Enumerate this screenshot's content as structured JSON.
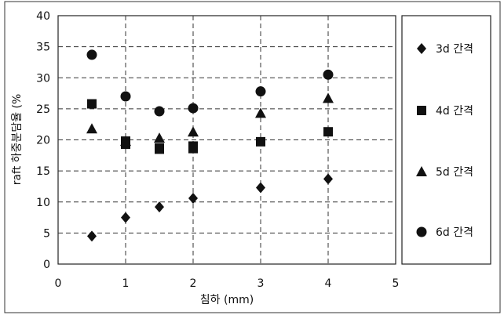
{
  "chart_data": {
    "type": "scatter",
    "xlabel": "침하 (mm)",
    "ylabel": "raft 하중분담율 (%",
    "xlim": [
      0,
      5
    ],
    "ylim": [
      0,
      40
    ],
    "xticks": [
      0,
      1,
      2,
      3,
      4,
      5
    ],
    "yticks": [
      0,
      5,
      10,
      15,
      20,
      25,
      30,
      35,
      40
    ],
    "grid": true,
    "legend_position": "right",
    "series": [
      {
        "name": "3d 간격",
        "marker": "diamond",
        "x": [
          0.5,
          1.0,
          1.5,
          2.0,
          3.0,
          4.0
        ],
        "y": [
          4.5,
          7.5,
          9.2,
          10.6,
          12.3,
          13.7
        ]
      },
      {
        "name": "4d 간격",
        "marker": "square",
        "x": [
          0.5,
          1.0,
          1.0,
          1.5,
          1.5,
          2.0,
          2.0,
          3.0,
          4.0
        ],
        "y": [
          25.8,
          19.8,
          19.3,
          18.7,
          18.5,
          19.0,
          18.6,
          19.7,
          21.3
        ]
      },
      {
        "name": "5d 간격",
        "marker": "triangle",
        "x": [
          0.5,
          1.0,
          1.5,
          2.0,
          3.0,
          4.0
        ],
        "y": [
          21.8,
          19.8,
          20.3,
          21.3,
          24.3,
          26.7
        ]
      },
      {
        "name": "6d 간격",
        "marker": "circle",
        "x": [
          0.5,
          1.0,
          1.5,
          2.0,
          3.0,
          4.0
        ],
        "y": [
          33.7,
          27.0,
          24.6,
          25.1,
          27.8,
          30.5
        ]
      }
    ]
  }
}
